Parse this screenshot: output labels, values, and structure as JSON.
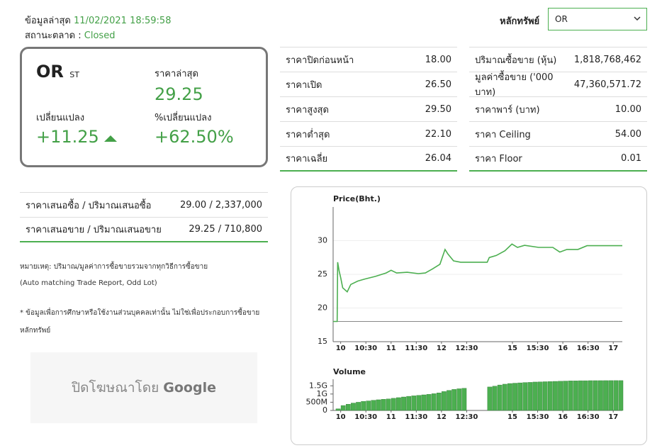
{
  "header": {
    "updated_label": "ข้อมูลล่าสุด",
    "updated_time": "11/02/2021 18:59:58",
    "status_label": "สถานะตลาด :",
    "status": "Closed",
    "security_label": "หลักทรัพย์",
    "security": "OR"
  },
  "summary": {
    "symbol": "OR",
    "market": "ST",
    "last_label": "ราคาล่าสุด",
    "last": "29.25",
    "change_label": "เปลี่ยนแปลง",
    "change": "+11.25",
    "pct_change_label": "%เปลี่ยนแปลง",
    "pct_change": "+62.50%"
  },
  "price_table": {
    "rows": [
      [
        "ราคาปิดก่อนหน้า",
        "18.00"
      ],
      [
        "ราคาเปิด",
        "26.50"
      ],
      [
        "ราคาสูงสุด",
        "29.50"
      ],
      [
        "ราคาต่ำสุด",
        "22.10"
      ],
      [
        "ราคาเฉลี่ย",
        "26.04"
      ]
    ]
  },
  "volume_table": {
    "rows": [
      [
        "ปริมาณซื้อขาย (หุ้น)",
        "1,818,768,462"
      ],
      [
        "มูลค่าซื้อขาย ('000 บาท)",
        "47,360,571.72"
      ],
      [
        "ราคาพาร์ (บาท)",
        "10.00"
      ],
      [
        "ราคา Ceiling",
        "54.00"
      ],
      [
        "ราคา Floor",
        "0.01"
      ]
    ]
  },
  "bid_offer_table": {
    "rows": [
      [
        "ราคาเสนอซื้อ / ปริมาณเสนอซื้อ",
        "29.00 / 2,337,000"
      ],
      [
        "ราคาเสนอขาย / ปริมาณเสนอขาย",
        "29.25 / 710,800"
      ]
    ]
  },
  "notes": [
    "หมายเหตุ: ปริมาณ/มูลค่าการซื้อขายรวมจากทุกวิธีการซื้อขาย",
    "(Auto matching Trade Report, Odd Lot)",
    "* ข้อมูลเพื่อการศึกษาหรือใช้งานส่วนบุคคลเท่านั้น ไม่ใช่เพื่อประกอบการซื้อขาย",
    "หลักทรัพย์"
  ],
  "ad": {
    "text": "ปิดโฆษณาโดย",
    "brand": "Google"
  },
  "price_chart": {
    "type": "line",
    "title": "Price(Bht.)",
    "color": "#4caf50",
    "reference": 18,
    "reference_color": "#888888",
    "x": [
      9.85,
      9.93,
      9.94,
      9.97,
      10.0,
      10.04,
      10.13,
      10.2,
      10.34,
      10.48,
      10.69,
      10.9,
      11.0,
      11.11,
      11.32,
      11.54,
      11.68,
      11.82,
      11.97,
      12.07,
      12.13,
      12.24,
      12.38,
      12.5,
      14.5,
      14.54,
      14.68,
      14.85,
      14.99,
      15.1,
      15.24,
      15.52,
      15.8,
      15.94,
      16.08,
      16.3,
      16.48,
      17.18
    ],
    "values": [
      18,
      18,
      26.8,
      25.5,
      24.5,
      23,
      22.4,
      23.5,
      24,
      24.3,
      24.7,
      25.2,
      25.6,
      25.2,
      25.3,
      25.1,
      25.2,
      25.8,
      26.5,
      28.7,
      28,
      27,
      26.8,
      26.8,
      26.8,
      27.5,
      27.8,
      28.5,
      29.5,
      29,
      29.3,
      29,
      29,
      28.3,
      28.7,
      28.7,
      29.25,
      29.25
    ],
    "xlim": [
      9.85,
      17.18
    ],
    "x_break": [
      12.5,
      14.5
    ],
    "xticks": [
      10,
      {
        "value": 10.5,
        "label": "10:30"
      },
      11,
      {
        "value": 11.5,
        "label": "11:30"
      },
      12,
      {
        "value": 12.5,
        "label": "12:30"
      },
      15,
      {
        "value": 15.5,
        "label": "15:30"
      },
      16,
      {
        "value": 16.5,
        "label": "16:30"
      },
      17
    ],
    "ylim": [
      15,
      35
    ],
    "yticks": [
      15,
      20,
      25,
      30
    ],
    "grid": true
  },
  "volume_chart": {
    "type": "bar",
    "title": "Volume",
    "color": "#4caf50",
    "x": [
      9.95,
      10.05,
      10.15,
      10.25,
      10.35,
      10.45,
      10.55,
      10.65,
      10.75,
      10.85,
      10.95,
      11.05,
      11.15,
      11.25,
      11.35,
      11.45,
      11.55,
      11.65,
      11.75,
      11.85,
      11.95,
      12.05,
      12.15,
      12.25,
      12.35,
      12.45,
      14.55,
      14.65,
      14.75,
      14.85,
      14.95,
      15.05,
      15.15,
      15.25,
      15.35,
      15.45,
      15.55,
      15.65,
      15.75,
      15.85,
      15.95,
      16.05,
      16.15,
      16.25,
      16.35,
      16.45,
      16.55,
      16.65,
      16.75,
      16.85,
      16.95,
      17.05,
      17.15
    ],
    "values": [
      100000000,
      300000000,
      380000000,
      450000000,
      500000000,
      550000000,
      580000000,
      620000000,
      650000000,
      680000000,
      700000000,
      740000000,
      780000000,
      820000000,
      860000000,
      890000000,
      920000000,
      950000000,
      980000000,
      1020000000,
      1070000000,
      1150000000,
      1220000000,
      1280000000,
      1320000000,
      1350000000,
      1430000000,
      1480000000,
      1550000000,
      1600000000,
      1640000000,
      1660000000,
      1680000000,
      1700000000,
      1710000000,
      1730000000,
      1740000000,
      1750000000,
      1760000000,
      1770000000,
      1780000000,
      1790000000,
      1800000000,
      1800000000,
      1810000000,
      1810000000,
      1815000000,
      1815000000,
      1816000000,
      1817000000,
      1818000000,
      1818700000,
      1818768462
    ],
    "xlim": [
      9.85,
      17.18
    ],
    "x_break": [
      12.5,
      14.5
    ],
    "xticks": [
      10,
      {
        "value": 10.5,
        "label": "10:30"
      },
      11,
      {
        "value": 11.5,
        "label": "11:30"
      },
      12,
      {
        "value": 12.5,
        "label": "12:30"
      },
      15,
      {
        "value": 15.5,
        "label": "15:30"
      },
      16,
      {
        "value": 16.5,
        "label": "16:30"
      },
      17
    ],
    "ylim": [
      0,
      1900000000
    ],
    "yticks": [
      0,
      {
        "value": 500000000,
        "label": "500M"
      },
      {
        "value": 1000000000,
        "label": "1G"
      },
      {
        "value": 1500000000,
        "label": "1.5G"
      }
    ]
  }
}
